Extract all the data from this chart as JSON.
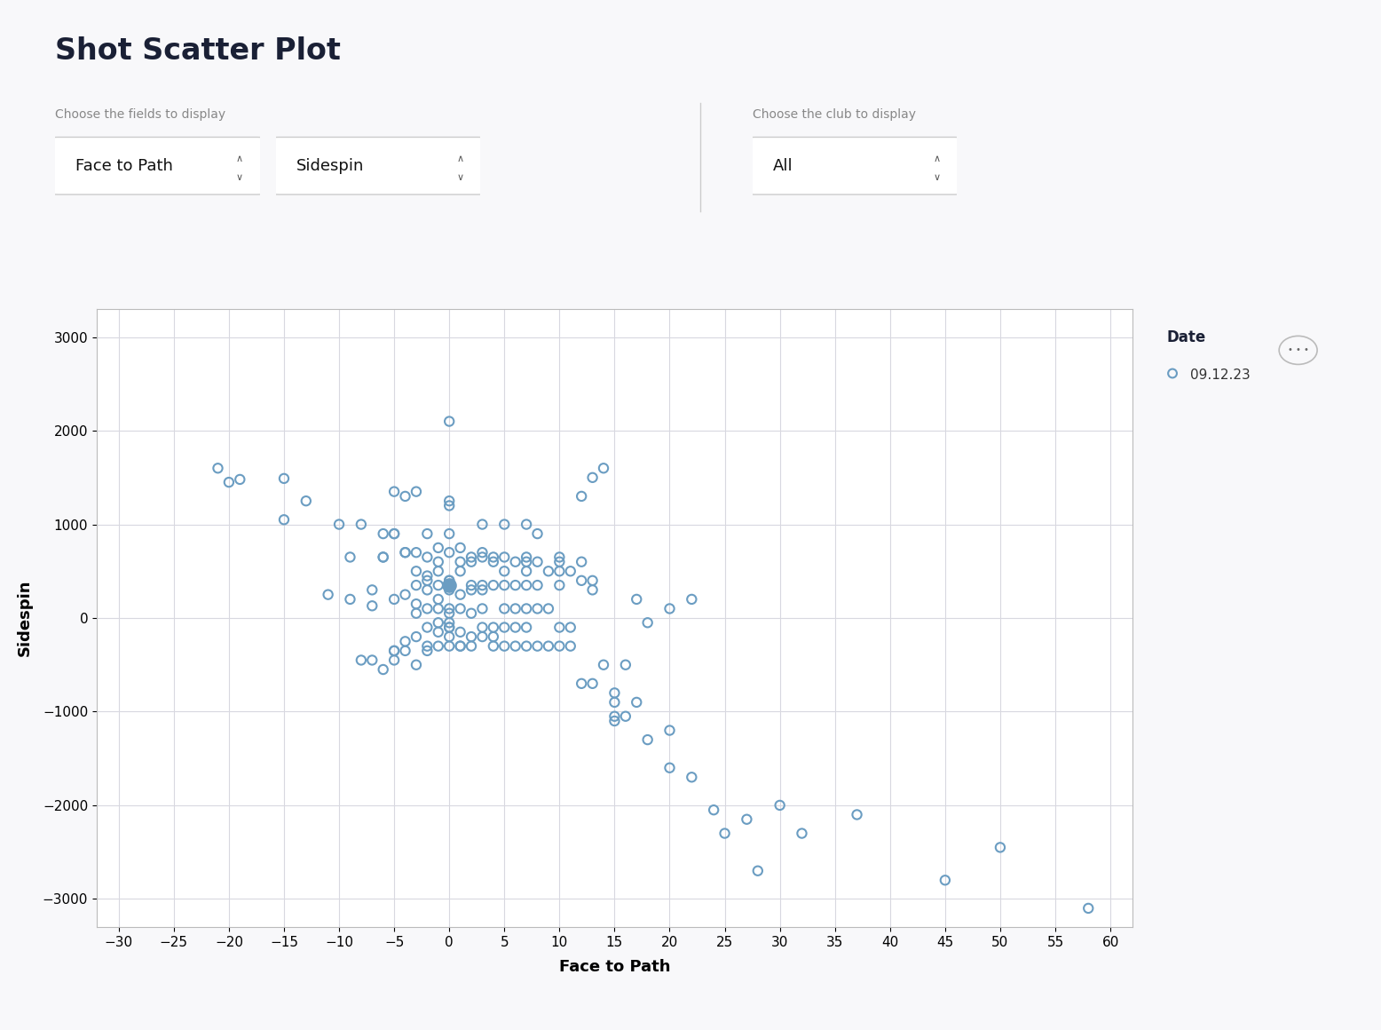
{
  "title": "Shot Scatter Plot",
  "xlabel": "Face to Path",
  "ylabel": "Sidespin",
  "xlim": [
    -32,
    62
  ],
  "ylim": [
    -3300,
    3300
  ],
  "xticks": [
    -30,
    -25,
    -20,
    -15,
    -10,
    -5,
    0,
    5,
    10,
    15,
    20,
    25,
    30,
    35,
    40,
    45,
    50,
    55,
    60
  ],
  "yticks": [
    -3000,
    -2000,
    -1000,
    0,
    1000,
    2000,
    3000
  ],
  "background_color": "#f8f8fa",
  "plot_bg_color": "#ffffff",
  "grid_color": "#d8d8e0",
  "marker_color": "#6B9DC2",
  "marker_size": 55,
  "marker_linewidth": 1.5,
  "legend_date_label": "Date",
  "legend_date_value": "09.12.23",
  "dropdown1_label": "Choose the fields to display",
  "dropdown1_value": "Face to Path",
  "dropdown2_value": "Sidespin",
  "dropdown3_label": "Choose the club to display",
  "dropdown3_value": "All",
  "scatter_x": [
    -21,
    -20,
    -19,
    -15,
    -15,
    -13,
    -11,
    -10,
    -9,
    -9,
    -8,
    -8,
    -7,
    -7,
    -7,
    -6,
    -6,
    -6,
    -5,
    -5,
    -5,
    -5,
    -5,
    -4,
    -4,
    -4,
    -4,
    -4,
    -3,
    -3,
    -3,
    -3,
    -3,
    -3,
    -3,
    -2,
    -2,
    -2,
    -2,
    -2,
    -2,
    -2,
    -2,
    -1,
    -1,
    -1,
    -1,
    -1,
    -1,
    -1,
    -1,
    0,
    0,
    0,
    0,
    0,
    0,
    0,
    0,
    0,
    0,
    0,
    0,
    0,
    1,
    1,
    1,
    1,
    1,
    1,
    1,
    2,
    2,
    2,
    2,
    2,
    2,
    3,
    3,
    3,
    3,
    3,
    3,
    4,
    4,
    4,
    4,
    4,
    5,
    5,
    5,
    5,
    5,
    6,
    6,
    6,
    6,
    7,
    7,
    7,
    7,
    7,
    8,
    8,
    8,
    9,
    9,
    10,
    10,
    10,
    10,
    11,
    11,
    12,
    12,
    13,
    13,
    14,
    15,
    15,
    16,
    17,
    18,
    20,
    22,
    24,
    25,
    27,
    28,
    30,
    32,
    37,
    45,
    50,
    58,
    -5,
    0,
    0,
    3,
    5,
    7,
    7,
    8,
    10,
    12,
    13,
    14,
    15,
    15,
    16,
    17,
    18,
    20,
    20,
    22,
    -6,
    -5,
    -4,
    -3,
    -2,
    -1,
    0,
    1,
    2,
    3,
    4,
    5,
    6,
    7,
    8,
    9,
    10,
    11,
    12,
    13
  ],
  "scatter_y": [
    1600,
    1450,
    1480,
    1050,
    1490,
    1250,
    250,
    1000,
    200,
    650,
    -450,
    1000,
    -450,
    130,
    300,
    -550,
    900,
    650,
    -450,
    -350,
    200,
    900,
    1350,
    -350,
    -250,
    250,
    700,
    1300,
    -500,
    -200,
    150,
    350,
    700,
    50,
    1350,
    -350,
    -300,
    100,
    300,
    650,
    450,
    900,
    -100,
    -300,
    -150,
    100,
    350,
    500,
    600,
    750,
    -50,
    -300,
    -200,
    50,
    300,
    400,
    700,
    1200,
    900,
    100,
    1250,
    2100,
    350,
    -100,
    -300,
    -150,
    100,
    250,
    500,
    600,
    -300,
    -200,
    50,
    300,
    350,
    650,
    -300,
    -200,
    100,
    350,
    650,
    -100,
    1000,
    -300,
    -200,
    350,
    650,
    -100,
    -300,
    -100,
    100,
    350,
    650,
    -300,
    100,
    350,
    -100,
    -300,
    100,
    -100,
    350,
    650,
    -300,
    100,
    350,
    -300,
    100,
    -300,
    -100,
    350,
    650,
    -300,
    -100,
    -700,
    600,
    -700,
    400,
    -500,
    -1100,
    -1050,
    -500,
    200,
    -50,
    100,
    200,
    -2050,
    -2300,
    -2150,
    -2700,
    -2000,
    -2300,
    -2100,
    -2800,
    -2450,
    -3100,
    -350,
    -100,
    -50,
    300,
    1000,
    1000,
    600,
    900,
    500,
    1300,
    1500,
    1600,
    -900,
    -800,
    -1050,
    -900,
    -1300,
    -1600,
    -1200,
    -1700,
    650,
    900,
    700,
    500,
    400,
    200,
    400,
    750,
    600,
    700,
    600,
    500,
    600,
    500,
    600,
    500,
    600,
    500,
    400,
    300
  ],
  "special_x": [
    0
  ],
  "special_y": [
    350
  ],
  "title_fontsize": 24,
  "axis_label_fontsize": 13,
  "tick_fontsize": 11
}
